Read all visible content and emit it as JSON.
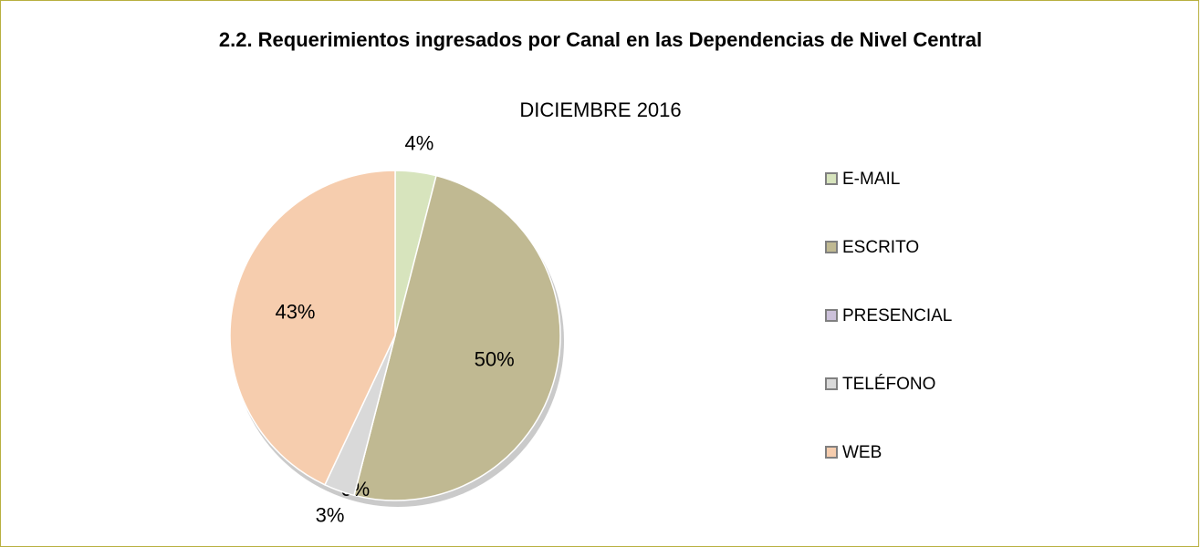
{
  "chart_data": {
    "type": "pie",
    "title": "2.2. Requerimientos ingresados por Canal en las Dependencias de Nivel Central",
    "subtitle": "DICIEMBRE  2016",
    "categories": [
      "E-MAIL",
      "ESCRITO",
      "PRESENCIAL",
      "TELÉFONO",
      "WEB"
    ],
    "values": [
      4,
      50,
      0,
      3,
      43
    ],
    "value_labels": [
      "4%",
      "50%",
      "0%",
      "3%",
      "43%"
    ],
    "colors": [
      "#d7e4bd",
      "#c0b992",
      "#ccc1da",
      "#d9d9d9",
      "#f6cdae"
    ],
    "legend": "right"
  }
}
